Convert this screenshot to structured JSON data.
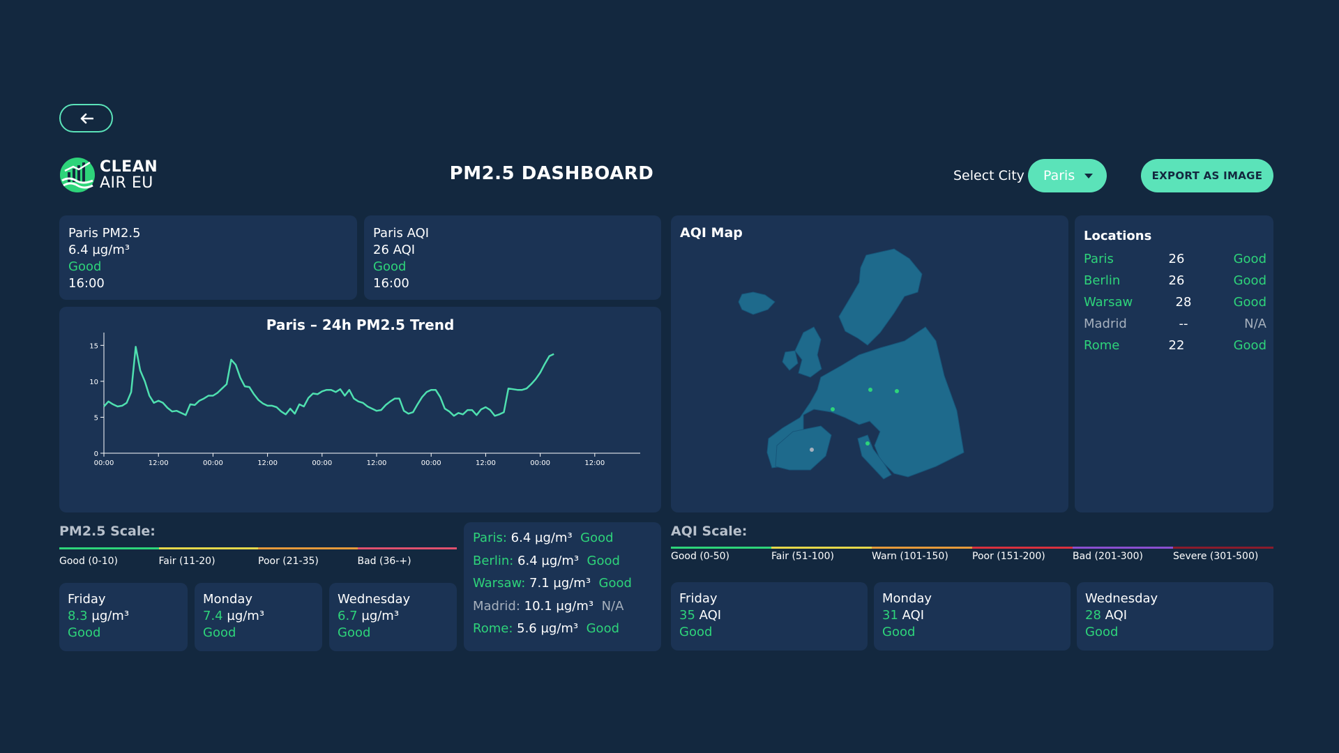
{
  "header": {
    "logo_line1": "CLEAN",
    "logo_line2": "AIR EU",
    "title": "PM2.5 DASHBOARD",
    "select_city_label": "Select City",
    "selected_city": "Paris",
    "export_label": "EXPORT AS IMAGE"
  },
  "cards": {
    "pm": {
      "title": "Paris PM2.5",
      "value": "6.4 µg/m³",
      "status": "Good",
      "time": "16:00"
    },
    "aqi": {
      "title": "Paris AQI",
      "value": "26 AQI",
      "status": "Good",
      "time": "16:00"
    }
  },
  "trend": {
    "title": "Paris – 24h PM2.5 Trend"
  },
  "chart_data": {
    "type": "line",
    "title": "Paris – 24h PM2.5 Trend",
    "xlabel": "",
    "ylabel": "",
    "ylim": [
      0,
      16
    ],
    "yticks": [
      "0",
      "5",
      "10",
      "15"
    ],
    "xticks": [
      "00:00",
      "12:00",
      "00:00",
      "12:00",
      "00:00",
      "12:00",
      "00:00",
      "12:00",
      "00:00",
      "12:00"
    ],
    "xlim": [
      0,
      118
    ],
    "grid": false,
    "series": [
      {
        "x": [
          0,
          1,
          2,
          3,
          4,
          5,
          6,
          7,
          8,
          9,
          10,
          11,
          12,
          13,
          14,
          15,
          16,
          17,
          18,
          19,
          20,
          21,
          22,
          23,
          24,
          25,
          26,
          27,
          28,
          29,
          30,
          31,
          32,
          33,
          34,
          35,
          36,
          37,
          38,
          39,
          40,
          41,
          42,
          43,
          44,
          45,
          46,
          47,
          48,
          49,
          50,
          51,
          52,
          53,
          54,
          55,
          56,
          57,
          58,
          59,
          60,
          61,
          62,
          63,
          64,
          65,
          66,
          67,
          68,
          69,
          70,
          71,
          72,
          73,
          74,
          75,
          76,
          77,
          78,
          79,
          80,
          81,
          82,
          83,
          84,
          85,
          86,
          87,
          88,
          89,
          90,
          91,
          92,
          93,
          94,
          95,
          96,
          97,
          98,
          99,
          100,
          101,
          102,
          103,
          104,
          105,
          106,
          107,
          108
        ],
        "y": [
          6.5,
          7.2,
          6.8,
          6.5,
          6.6,
          7.0,
          8.5,
          14.8,
          11.5,
          10.0,
          8.0,
          7.0,
          7.3,
          7.0,
          6.3,
          5.8,
          5.9,
          5.6,
          5.3,
          6.8,
          6.7,
          7.3,
          7.6,
          8.0,
          8.0,
          8.4,
          9.0,
          9.6,
          13.0,
          12.3,
          10.5,
          9.3,
          9.2,
          8.2,
          7.4,
          6.9,
          6.6,
          6.6,
          6.4,
          5.8,
          5.4,
          6.2,
          5.5,
          6.8,
          6.5,
          7.7,
          8.3,
          8.2,
          8.6,
          8.8,
          8.8,
          8.5,
          8.9,
          8.0,
          8.8,
          7.6,
          7.2,
          7.0,
          6.5,
          6.2,
          5.9,
          6.0,
          6.7,
          7.2,
          7.6,
          7.6,
          5.9,
          5.5,
          5.7,
          6.8,
          7.8,
          8.5,
          8.8,
          8.8,
          7.8,
          6.2,
          5.8,
          5.2,
          5.6,
          5.4,
          6.0,
          6.0,
          5.3,
          6.1,
          6.4,
          6.0,
          5.2,
          5.4,
          5.7,
          9.0,
          8.9,
          8.8,
          8.8,
          9.0,
          9.6,
          10.3,
          11.2,
          12.4,
          13.5,
          13.8,
          null,
          null,
          null,
          null,
          null,
          null,
          null,
          null,
          null
        ]
      }
    ]
  },
  "map": {
    "title": "AQI Map"
  },
  "locations": {
    "title": "Locations",
    "rows": [
      {
        "city": "Paris",
        "aqi": "26",
        "status": "Good",
        "color": "#2ed47a"
      },
      {
        "city": "Berlin",
        "aqi": "26",
        "status": "Good",
        "color": "#2ed47a"
      },
      {
        "city": "Warsaw",
        "aqi": "28",
        "status": "Good",
        "color": "#2ed47a"
      },
      {
        "city": "Madrid",
        "aqi": "--",
        "status": "N/A",
        "color": "#a6b0bd"
      },
      {
        "city": "Rome",
        "aqi": "22",
        "status": "Good",
        "color": "#2ed47a"
      }
    ]
  },
  "pm_scale": {
    "title": "PM2.5 Scale:",
    "levels": [
      {
        "label": "Good (0-10)",
        "color": "#2ed47a"
      },
      {
        "label": "Fair (11-20)",
        "color": "#e6d84a"
      },
      {
        "label": "Poor (21-35)",
        "color": "#e69a3a"
      },
      {
        "label": "Bad (36-+)",
        "color": "#e0506e"
      }
    ]
  },
  "aqi_scale": {
    "title": "AQI Scale:",
    "levels": [
      {
        "label": "Good (0-50)",
        "color": "#2ed47a"
      },
      {
        "label": "Fair (51-100)",
        "color": "#e6d84a"
      },
      {
        "label": "Warn (101-150)",
        "color": "#e69a3a"
      },
      {
        "label": "Poor (151-200)",
        "color": "#d9303e"
      },
      {
        "label": "Bad (201-300)",
        "color": "#8a4fd0"
      },
      {
        "label": "Severe (301-500)",
        "color": "#8a1b2c"
      }
    ]
  },
  "pm_forecast": [
    {
      "day": "Friday",
      "value": "8.3",
      "unit": " µg/m³",
      "status": "Good"
    },
    {
      "day": "Monday",
      "value": "7.4",
      "unit": " µg/m³",
      "status": "Good"
    },
    {
      "day": "Wednesday",
      "value": "6.7",
      "unit": " µg/m³",
      "status": "Good"
    }
  ],
  "city_pm": [
    {
      "city": "Paris:",
      "value": " 6.4 µg/m³",
      "status": "Good",
      "active": true
    },
    {
      "city": "Berlin:",
      "value": " 6.4 µg/m³",
      "status": "Good",
      "active": true
    },
    {
      "city": "Warsaw:",
      "value": " 7.1 µg/m³",
      "status": "Good",
      "active": true
    },
    {
      "city": "Madrid:",
      "value": " 10.1 µg/m³",
      "status": "N/A",
      "active": false
    },
    {
      "city": "Rome:",
      "value": " 5.6 µg/m³",
      "status": "Good",
      "active": true
    }
  ],
  "aqi_forecast": [
    {
      "day": "Friday",
      "value": "35",
      "unit": " AQI",
      "status": "Good"
    },
    {
      "day": "Monday",
      "value": "31",
      "unit": " AQI",
      "status": "Good"
    },
    {
      "day": "Wednesday",
      "value": "28",
      "unit": " AQI",
      "status": "Good"
    }
  ],
  "icons": {
    "back": "arrow-left-icon",
    "logo": "clean-air-logo-icon",
    "dropdown": "chevron-down-icon"
  }
}
